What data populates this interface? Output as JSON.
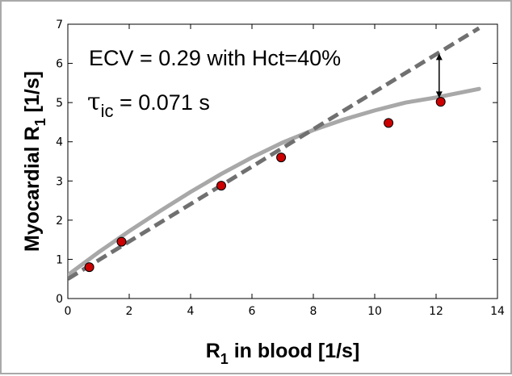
{
  "chart_data": {
    "type": "scatter",
    "xlabel_main": "R",
    "xlabel_sub": "1",
    "xlabel_rest": " in blood [1/s]",
    "ylabel_main": "Myocardial R",
    "ylabel_sub": "1",
    "ylabel_rest": " [1/s]",
    "xlim": [
      0,
      14
    ],
    "ylim": [
      0,
      7
    ],
    "xticks": [
      0,
      2,
      4,
      6,
      8,
      10,
      12,
      14
    ],
    "yticks": [
      0,
      1,
      2,
      3,
      4,
      5,
      6,
      7
    ],
    "grid": false,
    "points": {
      "x": [
        0.7,
        1.75,
        5.0,
        6.95,
        10.45,
        12.15
      ],
      "y": [
        0.8,
        1.45,
        2.88,
        3.6,
        4.48,
        5.02
      ],
      "color": "#cc0000"
    },
    "dashed_line": {
      "x": [
        0,
        13.4
      ],
      "y": [
        0.5,
        6.9
      ],
      "color": "#707070"
    },
    "solid_curve": {
      "x": [
        0,
        1,
        2,
        3,
        4,
        5,
        6,
        7,
        8,
        9,
        10,
        11,
        12,
        13.4
      ],
      "y": [
        0.6,
        1.18,
        1.72,
        2.23,
        2.72,
        3.18,
        3.6,
        3.98,
        4.3,
        4.57,
        4.8,
        5.0,
        5.13,
        5.35
      ],
      "color": "#a8a8a8"
    },
    "arrow": {
      "x": 12.1,
      "y_top": 6.25,
      "y_bottom": 5.12
    },
    "annotations": {
      "line1": "ECV = 0.29 with Hct=40%",
      "line2_symbol": "τ",
      "line2_sub": "ic",
      "line2_rest": " = 0.071 s"
    }
  }
}
